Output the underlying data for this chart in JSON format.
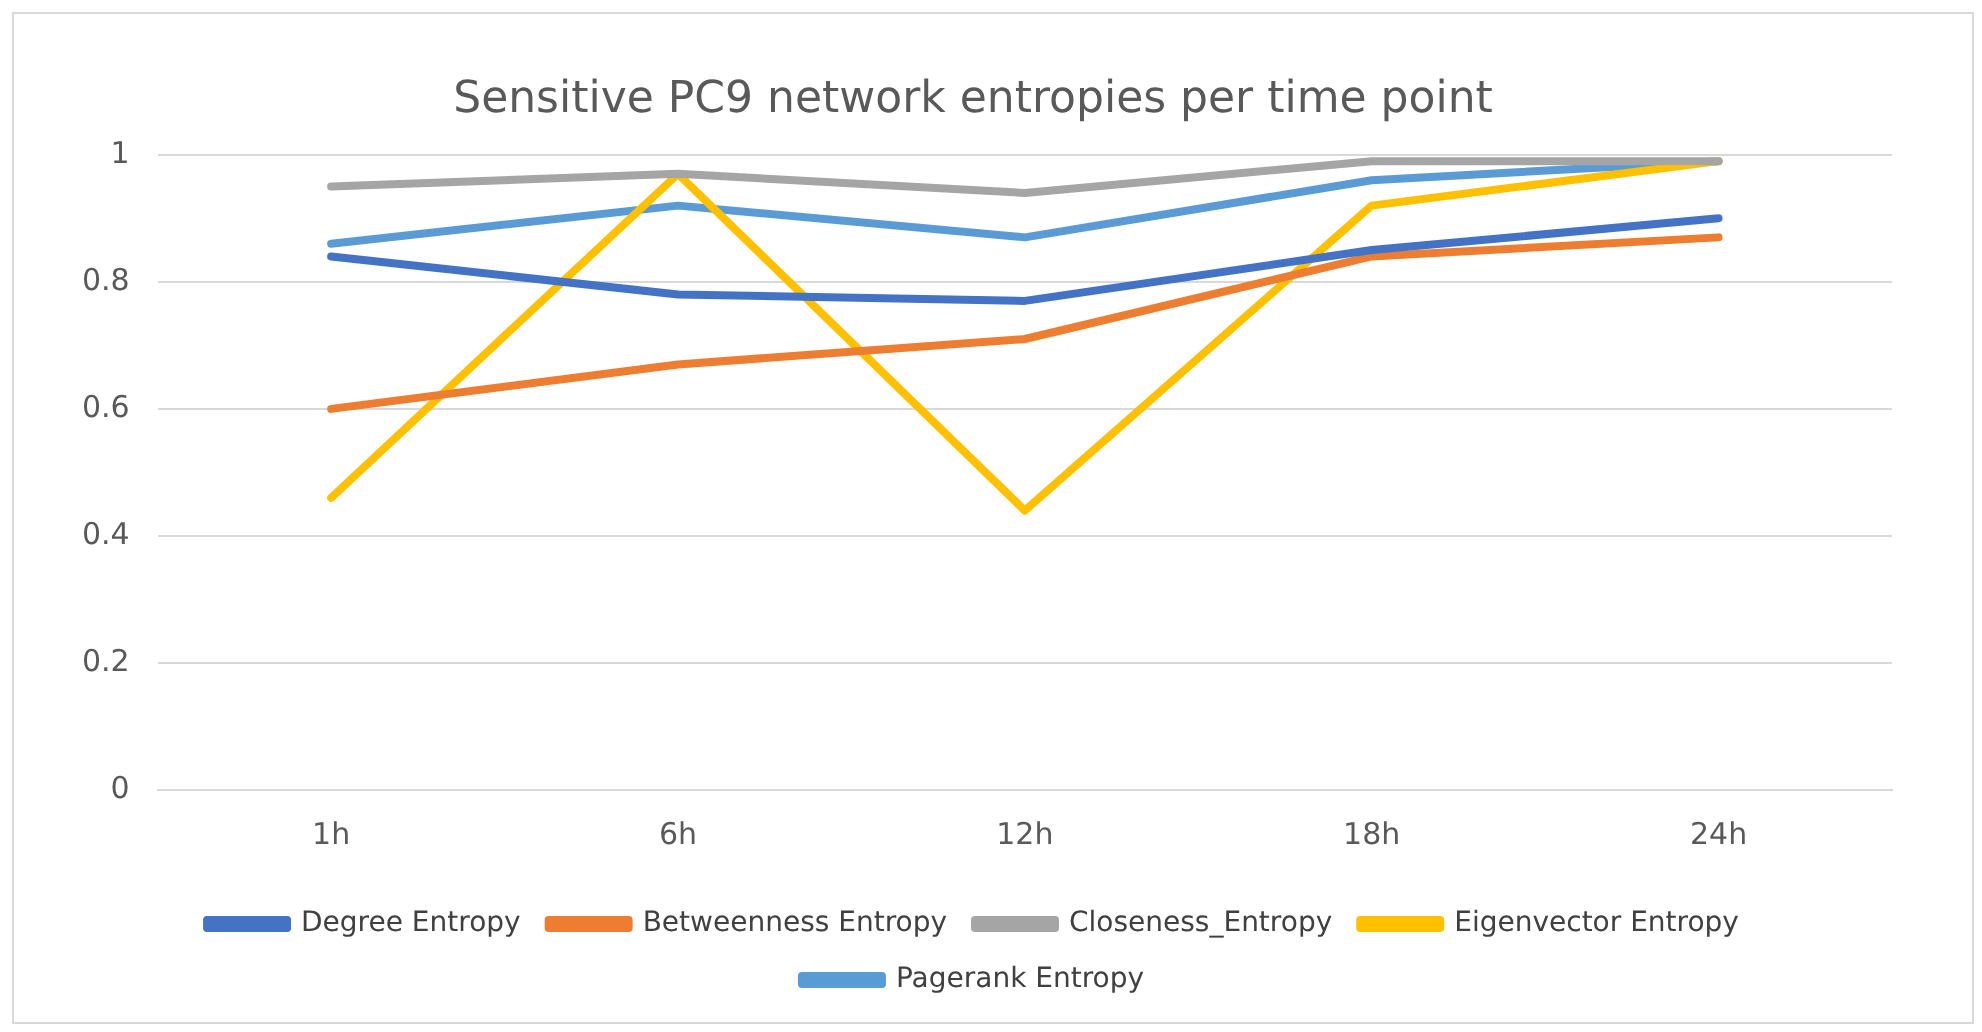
{
  "chart_data": {
    "type": "line",
    "title": "Sensitive PC9 network entropies per time point",
    "categories": [
      "1h",
      "6h",
      "12h",
      "18h",
      "24h"
    ],
    "series": [
      {
        "name": "Degree Entropy",
        "color": "#4472c4",
        "values": [
          0.84,
          0.78,
          0.77,
          0.85,
          0.9
        ]
      },
      {
        "name": "Betweenness Entropy",
        "color": "#ed7d31",
        "values": [
          0.6,
          0.67,
          0.71,
          0.84,
          0.87
        ]
      },
      {
        "name": "Closeness_Entropy",
        "color": "#a5a5a5",
        "values": [
          0.95,
          0.97,
          0.94,
          0.99,
          0.99
        ]
      },
      {
        "name": "Eigenvector Entropy",
        "color": "#ffc000",
        "values": [
          0.46,
          0.97,
          0.44,
          0.92,
          0.99
        ]
      },
      {
        "name": "Pagerank Entropy",
        "color": "#5b9bd5",
        "values": [
          0.86,
          0.92,
          0.87,
          0.96,
          0.99
        ]
      }
    ],
    "ylim": [
      0,
      1
    ],
    "yticks": [
      0,
      0.2,
      0.4,
      0.6,
      0.8,
      1
    ],
    "grid": "y",
    "legend": "bottom",
    "marker": "none",
    "line_style": "solid"
  }
}
